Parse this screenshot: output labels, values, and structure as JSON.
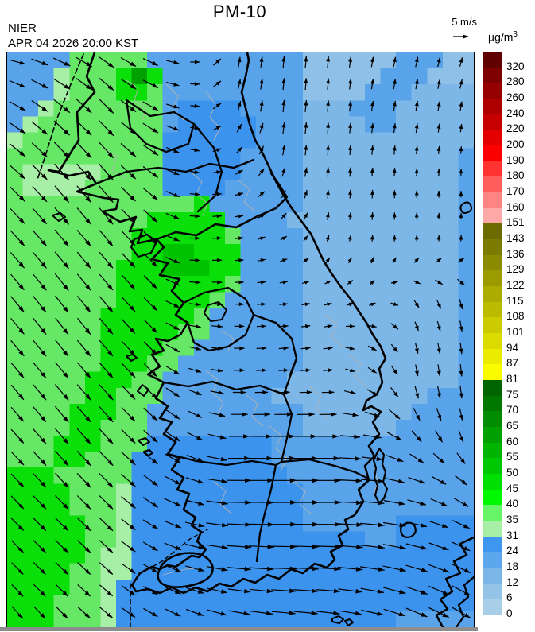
{
  "header": {
    "agency": "NIER",
    "title": "PM-10",
    "datetime": "APR 04 2026 20:00 KST",
    "wind_scale": {
      "label": "5 m/s"
    },
    "units": {
      "base": "µg/m",
      "exponent": "3"
    }
  },
  "colorbar": {
    "labels": [
      "320",
      "280",
      "260",
      "240",
      "220",
      "200",
      "190",
      "180",
      "170",
      "160",
      "151",
      "143",
      "136",
      "129",
      "122",
      "115",
      "108",
      "101",
      "94",
      "87",
      "81",
      "75",
      "70",
      "65",
      "60",
      "55",
      "50",
      "45",
      "40",
      "35",
      "31",
      "24",
      "18",
      "12",
      "6",
      "0"
    ],
    "colors": [
      "#600000",
      "#7E0000",
      "#960000",
      "#AE0000",
      "#C60000",
      "#E20000",
      "#FB0000",
      "#FF3232",
      "#FF5C5C",
      "#FF8484",
      "#FFA8A8",
      "#6B6B00",
      "#7B7B00",
      "#8B8B00",
      "#9B9B00",
      "#ABAB00",
      "#BBBB00",
      "#CBCB00",
      "#DBDB00",
      "#EBEB00",
      "#FBFB00",
      "#006400",
      "#007800",
      "#008C00",
      "#00A000",
      "#00B400",
      "#00C800",
      "#00E000",
      "#00F800",
      "#66F566",
      "#A7EFA7",
      "#3E96F0",
      "#5CA6EE",
      "#7AB6E8",
      "#93C3E6",
      "#A9CFE8"
    ]
  },
  "map": {
    "palette": {
      "0": "#A3CBE8",
      "1": "#8FC0E8",
      "2": "#7CB7E7",
      "3": "#58A3E9",
      "4": "#3B93EE",
      "5": "#A7EFA7",
      "6": "#66E766",
      "7": "#0ADF0A",
      "8": "#00C300",
      "9": "#00A000"
    },
    "grid": {
      "cols": 30,
      "rows": 36,
      "cells": [
        "333366666333333333311111133311",
        "333566679733333333311111333111",
        "333566677633333333311113332222",
        "335666666634444333322233322222",
        "356666666634444433322223322222",
        "566666666644444433322222222222",
        "666666666644444333322222222223",
        "655555666644444333322222222223",
        "655556666644443333322222222223",
        "666666666666733333322222222223",
        "666666666777773333222222222223",
        "666666667777776333322222222223",
        "666666667788777333322222222223",
        "666666677788877333322222222223",
        "666666677777776333322222222223",
        "666666677777763333322222222223",
        "666666777777633333322222222223",
        "666666777776633333322222222223",
        "666666777766333333322222222223",
        "666666777663333333322222222223",
        "666667776633333333222222222223",
        "666667766633333332222222222333",
        "666677766333333333322222223333",
        "666677666333333333322222233333",
        "666777666444444443333333333333",
        "666776664444444443333333333333",
        "777666664444444444333333333333",
        "777766654444444444433333333333",
        "777766654444444444433333333333",
        "777776654444444444433333344444",
        "777776654444444444444443344444",
        "777776554444444444444444444444",
        "777766554444444444444444444444",
        "777766544444444444444444444444",
        "777666544444444444444444444444",
        "777666544444444444444444433333"
      ]
    },
    "wind": {
      "cols": 11,
      "rows": 13,
      "angles": [
        [
          -15,
          -25,
          -35,
          -25,
          0,
          80,
          85,
          85,
          80,
          78,
          75
        ],
        [
          -30,
          -40,
          -45,
          -30,
          -5,
          75,
          85,
          85,
          82,
          80,
          80
        ],
        [
          -40,
          -47,
          -48,
          -35,
          -10,
          45,
          80,
          88,
          85,
          85,
          85
        ],
        [
          -45,
          -50,
          -50,
          -40,
          -5,
          10,
          60,
          85,
          88,
          90,
          90
        ],
        [
          -48,
          -50,
          -50,
          -45,
          0,
          5,
          25,
          70,
          85,
          90,
          85
        ],
        [
          -50,
          -52,
          -50,
          -45,
          -5,
          0,
          5,
          15,
          40,
          -50,
          -70
        ],
        [
          -50,
          -52,
          -50,
          -45,
          -12,
          0,
          5,
          8,
          -25,
          -75,
          -82
        ],
        [
          -50,
          -50,
          -48,
          -45,
          -20,
          0,
          2,
          2,
          -35,
          -80,
          -85
        ],
        [
          -48,
          -50,
          -48,
          -42,
          -28,
          0,
          0,
          0,
          -10,
          -55,
          -75
        ],
        [
          -46,
          -48,
          -45,
          -38,
          -18,
          0,
          0,
          0,
          -5,
          -20,
          -40
        ],
        [
          -45,
          -45,
          -44,
          -32,
          -12,
          -2,
          0,
          0,
          -5,
          -12,
          -25
        ],
        [
          -45,
          -44,
          -42,
          -30,
          -15,
          -5,
          -2,
          -3,
          -8,
          -16,
          -25
        ],
        [
          -47,
          -45,
          -40,
          -30,
          -20,
          -10,
          -5,
          -6,
          -12,
          -22,
          -30
        ]
      ],
      "mags": [
        [
          0.8,
          0.9,
          0.9,
          0.8,
          0.45,
          0.5,
          0.55,
          0.55,
          0.5,
          0.5,
          0.45
        ],
        [
          0.9,
          1.0,
          1.0,
          0.85,
          0.45,
          0.5,
          0.6,
          0.55,
          0.5,
          0.5,
          0.45
        ],
        [
          1.0,
          1.05,
          1.05,
          0.9,
          0.45,
          0.4,
          0.5,
          0.5,
          0.45,
          0.4,
          0.35
        ],
        [
          1.0,
          1.05,
          1.05,
          0.9,
          0.5,
          0.4,
          0.4,
          0.4,
          0.4,
          0.35,
          0.3
        ],
        [
          1.0,
          1.05,
          1.0,
          0.9,
          0.5,
          0.4,
          0.35,
          0.3,
          0.3,
          0.3,
          0.3
        ],
        [
          1.0,
          1.05,
          1.0,
          0.9,
          0.55,
          0.45,
          0.4,
          0.35,
          0.3,
          0.4,
          0.5
        ],
        [
          1.0,
          1.0,
          1.0,
          0.9,
          0.6,
          0.5,
          0.45,
          0.45,
          0.45,
          0.5,
          0.55
        ],
        [
          0.95,
          1.0,
          1.0,
          0.9,
          0.65,
          0.55,
          0.5,
          0.5,
          0.5,
          0.6,
          0.6
        ],
        [
          0.9,
          1.0,
          1.0,
          0.9,
          0.8,
          0.95,
          1.05,
          1.0,
          0.85,
          0.7,
          0.6
        ],
        [
          0.9,
          0.95,
          0.95,
          0.9,
          0.9,
          1.15,
          1.25,
          1.25,
          1.1,
          0.85,
          0.7
        ],
        [
          0.85,
          0.9,
          0.9,
          0.85,
          0.95,
          1.2,
          1.3,
          1.3,
          1.2,
          1.0,
          0.9
        ],
        [
          0.8,
          0.85,
          0.85,
          0.8,
          0.95,
          1.15,
          1.25,
          1.25,
          1.2,
          1.1,
          1.0
        ],
        [
          0.8,
          0.8,
          0.8,
          0.8,
          0.9,
          1.05,
          1.15,
          1.15,
          1.1,
          1.1,
          1.05
        ]
      ]
    }
  }
}
